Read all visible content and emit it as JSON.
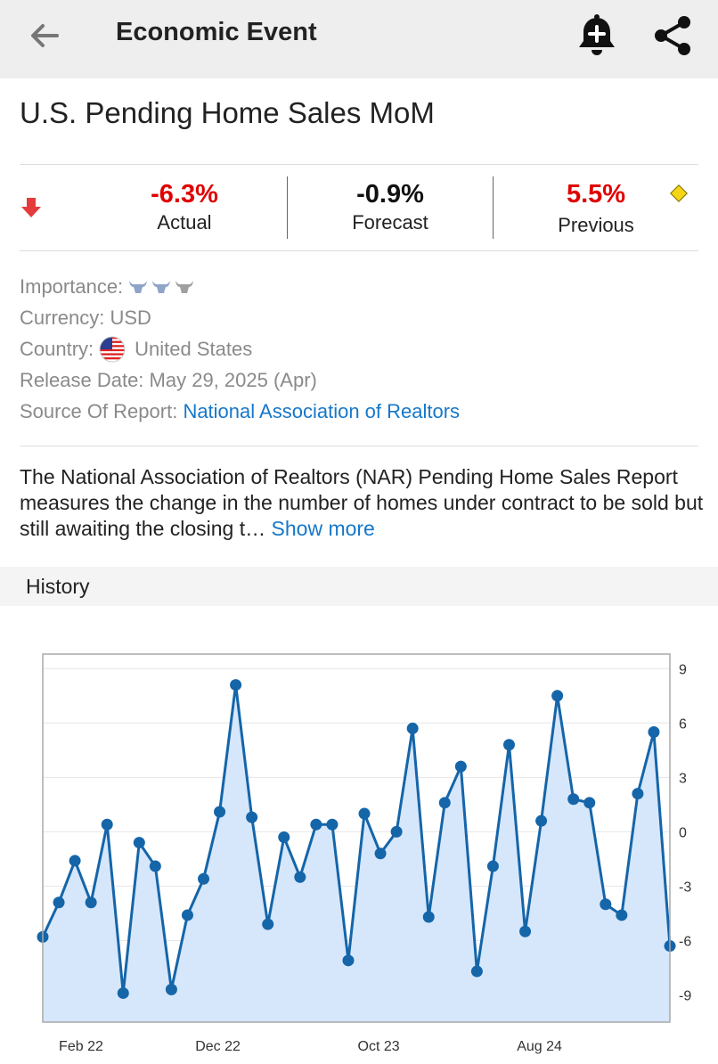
{
  "header": {
    "title": "Economic Event",
    "back_icon": "arrow-left-icon",
    "bell_icon": "bell-plus-icon",
    "share_icon": "share-icon"
  },
  "event": {
    "title": "U.S. Pending Home Sales MoM",
    "actual": "-6.3%",
    "actual_label": "Actual",
    "forecast": "-0.9%",
    "forecast_label": "Forecast",
    "previous": "5.5%",
    "previous_label": "Previous",
    "colors": {
      "negative": "#e00000",
      "neutral": "#111111",
      "revised": "#f6d515"
    }
  },
  "info": {
    "importance_label": "Importance:",
    "importance_level": 2,
    "currency_label": "Currency:",
    "currency": "USD",
    "country_label": "Country:",
    "country": "United States",
    "release_label": "Release Date:",
    "release": "May 29, 2025 (Apr)",
    "source_label": "Source Of Report:",
    "source": "National Association of Realtors"
  },
  "description": {
    "text": "The National Association of Realtors (NAR) Pending Home Sales Report measures the change in the number of homes under contract to be sold but still awaiting the closing t…",
    "show_more": "Show more"
  },
  "history": {
    "label": "History"
  },
  "chart_data": {
    "type": "area",
    "xlabel": "",
    "ylabel": "",
    "ylim": [
      -10.5,
      9.8
    ],
    "yticks": [
      9,
      6,
      3,
      0,
      -3,
      -6,
      -9
    ],
    "xtick_labels": [
      "Feb 22",
      "Dec 22",
      "Oct 23",
      "Aug 24"
    ],
    "xtick_index": [
      1,
      11,
      21,
      31
    ],
    "line_color": "#1565a9",
    "fill_color": "#d6e7fb",
    "grid": true,
    "values": [
      -5.8,
      -3.9,
      -1.6,
      -3.9,
      0.4,
      -8.9,
      -0.6,
      -1.9,
      -8.7,
      -4.6,
      -2.6,
      1.1,
      8.1,
      0.8,
      -5.1,
      -0.3,
      -2.5,
      0.4,
      0.4,
      -7.1,
      1.0,
      -1.2,
      0.0,
      5.7,
      -4.7,
      1.6,
      3.6,
      -7.7,
      -1.9,
      4.8,
      -5.5,
      0.6,
      7.5,
      1.8,
      1.6,
      -4.0,
      -4.6,
      2.1,
      5.5,
      -6.3
    ]
  }
}
